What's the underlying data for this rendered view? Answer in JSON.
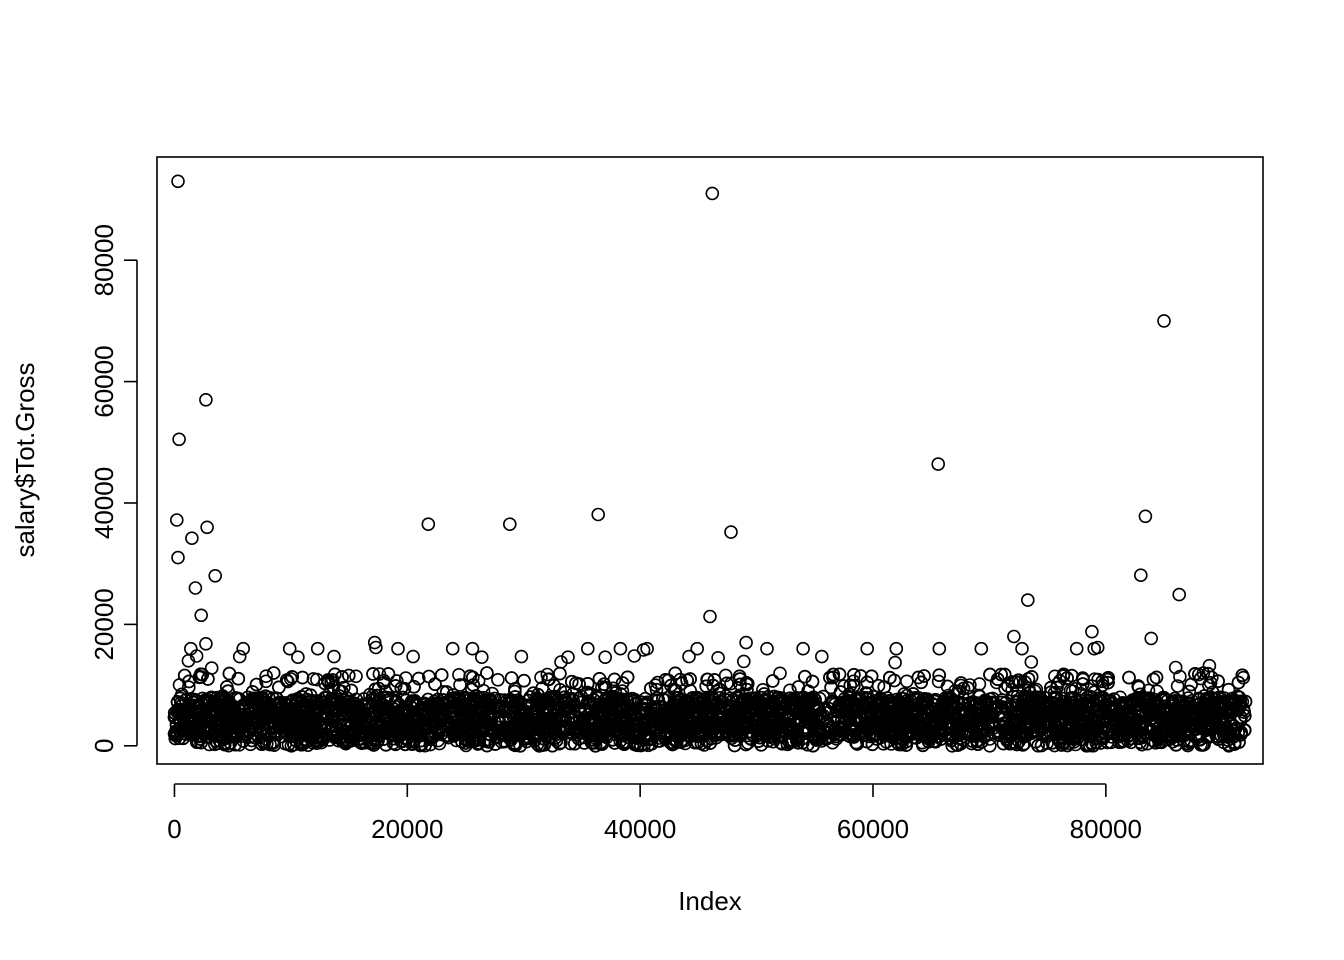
{
  "chart_data": {
    "type": "scatter",
    "title": "",
    "xlabel": "Index",
    "ylabel": "salary$Tot.Gross",
    "xlim": [
      -1500,
      93500
    ],
    "ylim": [
      -3000,
      97000
    ],
    "x_ticks": [
      0,
      20000,
      40000,
      60000,
      80000
    ],
    "y_ticks": [
      0,
      20000,
      40000,
      60000,
      80000
    ],
    "x_tick_labels": [
      "0",
      "20000",
      "40000",
      "60000",
      "80000"
    ],
    "y_tick_labels": [
      "0",
      "20000",
      "40000",
      "60000",
      "80000"
    ],
    "n_points": 92000,
    "grid": false,
    "legend": "none",
    "bulk_band": {
      "description_range_y": [
        0,
        9000
      ],
      "typical_upper_y": 11000
    },
    "notable_points": [
      {
        "x": 300,
        "y": 93000
      },
      {
        "x": 200,
        "y": 37200
      },
      {
        "x": 300,
        "y": 31000
      },
      {
        "x": 400,
        "y": 50500
      },
      {
        "x": 1500,
        "y": 34200
      },
      {
        "x": 1800,
        "y": 26000
      },
      {
        "x": 2300,
        "y": 21500
      },
      {
        "x": 2700,
        "y": 57000
      },
      {
        "x": 2800,
        "y": 36000
      },
      {
        "x": 2700,
        "y": 16800
      },
      {
        "x": 3500,
        "y": 28000
      },
      {
        "x": 21800,
        "y": 36500
      },
      {
        "x": 28800,
        "y": 36500
      },
      {
        "x": 36400,
        "y": 38100
      },
      {
        "x": 46200,
        "y": 91000
      },
      {
        "x": 46000,
        "y": 21300
      },
      {
        "x": 47800,
        "y": 35200
      },
      {
        "x": 65600,
        "y": 46400
      },
      {
        "x": 72100,
        "y": 18000
      },
      {
        "x": 73300,
        "y": 24000
      },
      {
        "x": 78800,
        "y": 18800
      },
      {
        "x": 83000,
        "y": 28100
      },
      {
        "x": 83400,
        "y": 37800
      },
      {
        "x": 83900,
        "y": 17700
      },
      {
        "x": 85000,
        "y": 70000
      },
      {
        "x": 86300,
        "y": 24900
      }
    ],
    "moderate_points": [
      {
        "x": 1200,
        "y": 14000
      },
      {
        "x": 1400,
        "y": 16000
      },
      {
        "x": 1900,
        "y": 14800
      },
      {
        "x": 3200,
        "y": 12800
      },
      {
        "x": 5600,
        "y": 14700
      },
      {
        "x": 5900,
        "y": 16000
      },
      {
        "x": 9900,
        "y": 16000
      },
      {
        "x": 10600,
        "y": 14600
      },
      {
        "x": 12300,
        "y": 16000
      },
      {
        "x": 13700,
        "y": 14700
      },
      {
        "x": 17200,
        "y": 17000
      },
      {
        "x": 17300,
        "y": 16200
      },
      {
        "x": 19200,
        "y": 16000
      },
      {
        "x": 20500,
        "y": 14700
      },
      {
        "x": 23900,
        "y": 16000
      },
      {
        "x": 25600,
        "y": 16000
      },
      {
        "x": 26400,
        "y": 14600
      },
      {
        "x": 29800,
        "y": 14700
      },
      {
        "x": 33200,
        "y": 13800
      },
      {
        "x": 33800,
        "y": 14600
      },
      {
        "x": 35500,
        "y": 16000
      },
      {
        "x": 37000,
        "y": 14600
      },
      {
        "x": 38300,
        "y": 16000
      },
      {
        "x": 39500,
        "y": 14800
      },
      {
        "x": 40300,
        "y": 15800
      },
      {
        "x": 40600,
        "y": 16000
      },
      {
        "x": 44200,
        "y": 14700
      },
      {
        "x": 44900,
        "y": 16000
      },
      {
        "x": 46700,
        "y": 14500
      },
      {
        "x": 48900,
        "y": 13900
      },
      {
        "x": 49100,
        "y": 17000
      },
      {
        "x": 50900,
        "y": 16000
      },
      {
        "x": 54000,
        "y": 16000
      },
      {
        "x": 55600,
        "y": 14700
      },
      {
        "x": 59500,
        "y": 16000
      },
      {
        "x": 62000,
        "y": 16000
      },
      {
        "x": 61900,
        "y": 13700
      },
      {
        "x": 65700,
        "y": 16000
      },
      {
        "x": 69300,
        "y": 16000
      },
      {
        "x": 72800,
        "y": 16000
      },
      {
        "x": 73600,
        "y": 13800
      },
      {
        "x": 77500,
        "y": 16000
      },
      {
        "x": 79000,
        "y": 16000
      },
      {
        "x": 79300,
        "y": 16200
      },
      {
        "x": 86000,
        "y": 12900
      },
      {
        "x": 88900,
        "y": 13200
      }
    ]
  }
}
